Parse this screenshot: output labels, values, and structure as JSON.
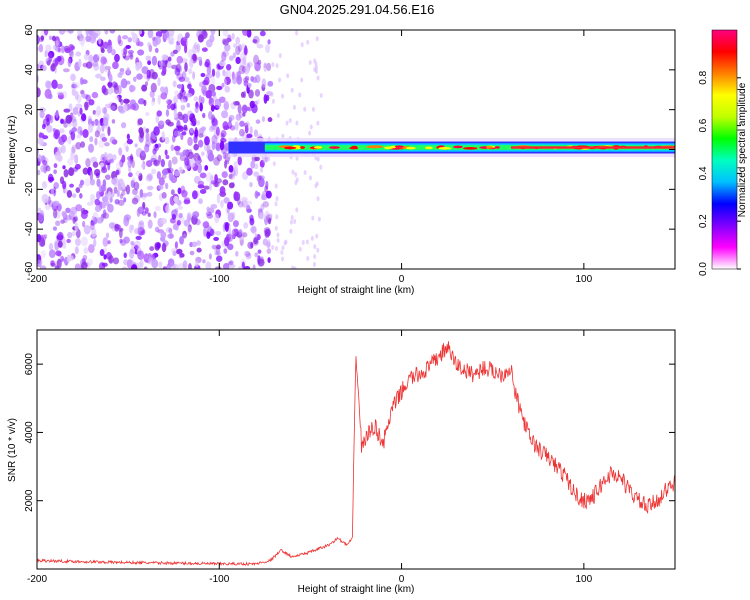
{
  "title": "GN04.2025.291.04.56.E16",
  "chart_data": [
    {
      "type": "heatmap",
      "xlabel": "Height of straight line (km)",
      "ylabel": "Frequency (Hz)",
      "xlim": [
        -200,
        150
      ],
      "ylim": [
        -60,
        60
      ],
      "xticks": [
        -200,
        -100,
        0,
        100
      ],
      "yticks": [
        -60,
        -40,
        -20,
        0,
        20,
        40,
        60
      ],
      "colorbar": {
        "label": "Normalized spectral amplitude",
        "range": [
          0,
          1
        ],
        "ticks": [
          0.0,
          0.2,
          0.4,
          0.6,
          0.8
        ],
        "colormap": [
          "#ffffff",
          "#ff00ff",
          "#8000ff",
          "#0000ff",
          "#00c0ff",
          "#00ffc0",
          "#00ff00",
          "#c0ff00",
          "#ffff00",
          "#ff8000",
          "#ff0000",
          "#ff0080"
        ]
      },
      "regions": [
        {
          "name": "noise",
          "x_range": [
            -200,
            -72
          ],
          "freq_range": [
            -60,
            60
          ],
          "amplitude": 0.1
        },
        {
          "name": "signal-band",
          "x_range": [
            -95,
            150
          ],
          "freq_center": 1,
          "freq_halfwidth": 3,
          "amplitude_peak": 0.95
        }
      ]
    },
    {
      "type": "line",
      "xlabel": "Height of straight line (km)",
      "ylabel": "SNR (10 * v/v)",
      "xlim": [
        -200,
        150
      ],
      "ylim": [
        0,
        7000
      ],
      "xticks": [
        -200,
        -100,
        0,
        100
      ],
      "yticks": [
        2000,
        4000,
        6000
      ],
      "color": "#ee3333",
      "x": [
        -200,
        -180,
        -160,
        -140,
        -120,
        -100,
        -80,
        -72,
        -66,
        -60,
        -50,
        -40,
        -35,
        -30,
        -27,
        -25,
        -22,
        -20,
        -15,
        -10,
        -5,
        0,
        5,
        10,
        15,
        20,
        25,
        30,
        35,
        40,
        45,
        50,
        55,
        60,
        62,
        66,
        70,
        75,
        80,
        85,
        90,
        95,
        100,
        105,
        110,
        115,
        120,
        125,
        130,
        135,
        140,
        145,
        150
      ],
      "y": [
        250,
        220,
        200,
        180,
        170,
        150,
        150,
        250,
        550,
        350,
        500,
        700,
        900,
        700,
        900,
        6400,
        3600,
        3800,
        4200,
        3700,
        4700,
        5200,
        5600,
        5700,
        5900,
        6200,
        6500,
        6000,
        5800,
        5700,
        5900,
        5800,
        5700,
        5900,
        5200,
        4500,
        3900,
        3500,
        3300,
        3000,
        2700,
        2200,
        2000,
        2100,
        2500,
        2800,
        2700,
        2300,
        2000,
        1800,
        2000,
        2300,
        2500
      ]
    }
  ]
}
